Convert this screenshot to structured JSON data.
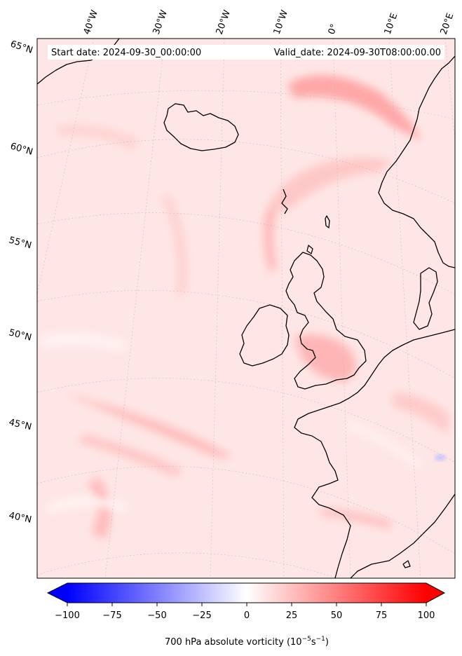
{
  "header": {
    "start": "Start date: 2024-09-30_00:00:00",
    "valid": "Valid_date: 2024-09-30T08:00:00.00"
  },
  "lon_labels": [
    "40°W",
    "30°W",
    "20°W",
    "10°W",
    "0°",
    "10°E",
    "20°E"
  ],
  "lat_labels": [
    "65°N",
    "60°N",
    "55°N",
    "50°N",
    "45°N",
    "40°N"
  ],
  "colorbar": {
    "ticks": [
      "−100",
      "−75",
      "−50",
      "−25",
      "0",
      "25",
      "50",
      "75",
      "100"
    ],
    "min": -100,
    "max": 100,
    "label_main": "700 hPa absolute vorticity (10",
    "label_exp1": "−5",
    "label_mid": "s",
    "label_exp2": "−1",
    "label_end": ")",
    "colors": {
      "negative": "#0000ff",
      "zero": "#ffffff",
      "positive": "#ff0000"
    }
  },
  "land_features": [
    "iceland",
    "ireland",
    "great-britain",
    "scandinavia",
    "iberia",
    "france",
    "shetland"
  ]
}
